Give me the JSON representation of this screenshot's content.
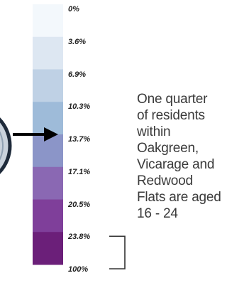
{
  "chart_data": {
    "type": "legend-scale",
    "tick_labels": [
      "0%",
      "3.6%",
      "6.9%",
      "10.3%",
      "13.7%",
      "17.1%",
      "20.5%",
      "23.8%",
      "100%"
    ],
    "bins": [
      {
        "from": "0%",
        "to": "3.6%",
        "color": "#f3f8fc"
      },
      {
        "from": "3.6%",
        "to": "6.9%",
        "color": "#dde7f2"
      },
      {
        "from": "6.9%",
        "to": "10.3%",
        "color": "#bfd1e5"
      },
      {
        "from": "10.3%",
        "to": "13.7%",
        "color": "#9ebbd9"
      },
      {
        "from": "13.7%",
        "to": "17.1%",
        "color": "#8b95c8"
      },
      {
        "from": "17.1%",
        "to": "20.5%",
        "color": "#8a68b3"
      },
      {
        "from": "20.5%",
        "to": "23.8%",
        "color": "#7f3f9a"
      },
      {
        "from": "23.8%",
        "to": "100%",
        "color": "#6b1f79"
      }
    ],
    "marker_value": "13.7%",
    "bracket_range": [
      "23.8%",
      "100%"
    ],
    "annotation_lines": [
      "One quarter",
      "of residents",
      "within",
      "Oakgreen,",
      "Vicarage and",
      "Redwood",
      "Flats are aged",
      "16 - 24"
    ]
  },
  "colors": {
    "arrow": "#000000",
    "bracket": "#333333",
    "text": "#3a3a3a",
    "ring_outer": "#1e2a3a",
    "ring_inner": "#c9d2dc"
  }
}
